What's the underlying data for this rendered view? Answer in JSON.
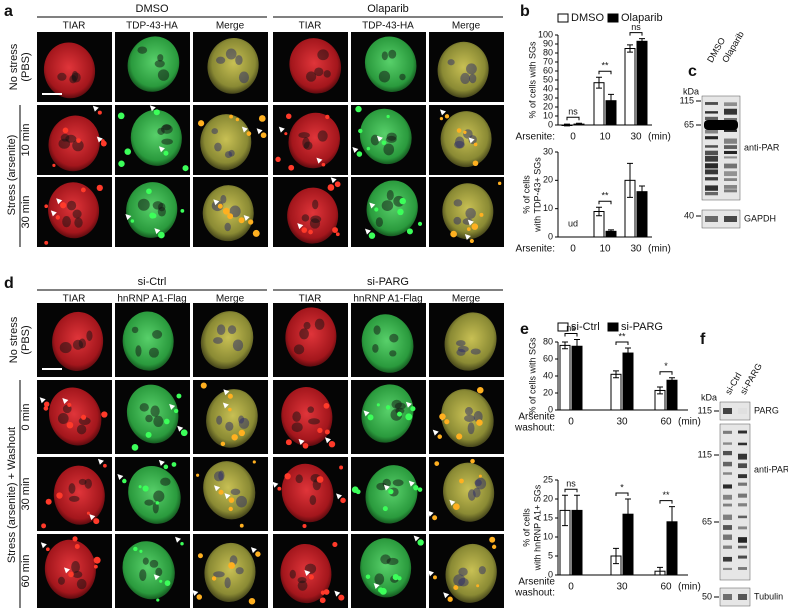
{
  "panel_labels": [
    "a",
    "b",
    "c",
    "d",
    "e",
    "f"
  ],
  "panel_a": {
    "conditions": [
      "DMSO",
      "Olaparib"
    ],
    "channels": [
      "TIAR",
      "TDP-43-HA",
      "Merge"
    ],
    "rows": [
      [
        "No stress",
        "(PBS)"
      ],
      [
        "10 min"
      ],
      [
        "30 min"
      ]
    ],
    "group_label": "Stress (arsenite)"
  },
  "panel_d": {
    "conditions": [
      "si-Ctrl",
      "si-PARG"
    ],
    "channels": [
      "TIAR",
      "hnRNP A1-Flag",
      "Merge"
    ],
    "rows": [
      [
        "No stress",
        "(PBS)"
      ],
      [
        "0 min"
      ],
      [
        "30 min"
      ],
      [
        "60 min"
      ]
    ],
    "group_label": "Stress (arsenite) + Washout"
  },
  "chart_data": [
    {
      "type": "bar",
      "ylabel": [
        "% of cells with SGs"
      ],
      "xlabel": [
        "Arsenite:"
      ],
      "categories": [
        "0",
        "10",
        "30"
      ],
      "x_unit": "(min)",
      "ylim": [
        0,
        100
      ],
      "yticks": [
        0,
        10,
        20,
        30,
        40,
        50,
        60,
        70,
        80,
        90,
        100
      ],
      "series": [
        {
          "name": "DMSO",
          "color": "#ffffff",
          "values": [
            0,
            47,
            85
          ],
          "errors": [
            1,
            6,
            4
          ]
        },
        {
          "name": "Olaparib",
          "color": "#000000",
          "values": [
            1,
            27,
            93
          ],
          "errors": [
            1,
            7,
            3
          ]
        }
      ],
      "annotations": [
        "ns",
        "**",
        "ns"
      ]
    },
    {
      "type": "bar",
      "ylabel": [
        "% of cells",
        "with TDP-43+ SGs"
      ],
      "xlabel": [
        "Arsenite:"
      ],
      "categories": [
        "0",
        "10",
        "30"
      ],
      "x_unit": "(min)",
      "ylim": [
        0,
        30
      ],
      "yticks": [
        0,
        10,
        20,
        30
      ],
      "series": [
        {
          "color": "#ffffff",
          "values": [
            null,
            9,
            20
          ],
          "errors": [
            null,
            1.5,
            6
          ]
        },
        {
          "color": "#000000",
          "values": [
            null,
            2,
            16
          ],
          "errors": [
            null,
            0.5,
            2
          ]
        }
      ],
      "annotations": [
        "ud",
        "**",
        null
      ]
    },
    {
      "type": "bar",
      "ylabel": [
        "% of cells with SGs"
      ],
      "xlabel": [
        "Arsenite",
        "washout:"
      ],
      "categories": [
        "0",
        "30",
        "60"
      ],
      "x_unit": "(min)",
      "ylim": [
        0,
        80
      ],
      "yticks": [
        0,
        20,
        40,
        60,
        80
      ],
      "series": [
        {
          "name": "si-Ctrl",
          "color": "#ffffff",
          "values": [
            76,
            42,
            23
          ],
          "errors": [
            4,
            4,
            4
          ]
        },
        {
          "name": "si-PARG",
          "color": "#000000",
          "values": [
            75,
            67,
            35
          ],
          "errors": [
            8,
            6,
            3
          ]
        }
      ],
      "annotations": [
        "ns",
        "**",
        "*"
      ]
    },
    {
      "type": "bar",
      "ylabel": [
        "% of cells",
        "with hnRNP A1+ SGs"
      ],
      "xlabel": [
        "Arsenite",
        "washout:"
      ],
      "categories": [
        "0",
        "30",
        "60"
      ],
      "x_unit": "(min)",
      "ylim": [
        0,
        25
      ],
      "yticks": [
        0,
        5,
        10,
        15,
        20,
        25
      ],
      "series": [
        {
          "color": "#ffffff",
          "values": [
            17,
            5,
            1
          ],
          "errors": [
            4,
            2,
            1
          ]
        },
        {
          "color": "#000000",
          "values": [
            17,
            16,
            14
          ],
          "errors": [
            4,
            4,
            4
          ]
        }
      ],
      "annotations": [
        "ns",
        "*",
        "**"
      ]
    }
  ],
  "blot_c": {
    "lanes": [
      "DMSO",
      "Olaparib"
    ],
    "unit": "kDa",
    "blots": [
      {
        "label": "anti-PAR",
        "markers": [
          "115",
          "65"
        ]
      },
      {
        "label": "GAPDH",
        "markers": [
          "40"
        ]
      }
    ]
  },
  "blot_f": {
    "lanes": [
      "si-Ctrl",
      "si-PARG"
    ],
    "unit": "kDa",
    "blots": [
      {
        "label": "PARG",
        "markers": [
          "115"
        ]
      },
      {
        "label": "anti-PAR",
        "markers": [
          "115",
          "65"
        ]
      },
      {
        "label": "Tubulin",
        "markers": [
          "50"
        ]
      }
    ]
  }
}
